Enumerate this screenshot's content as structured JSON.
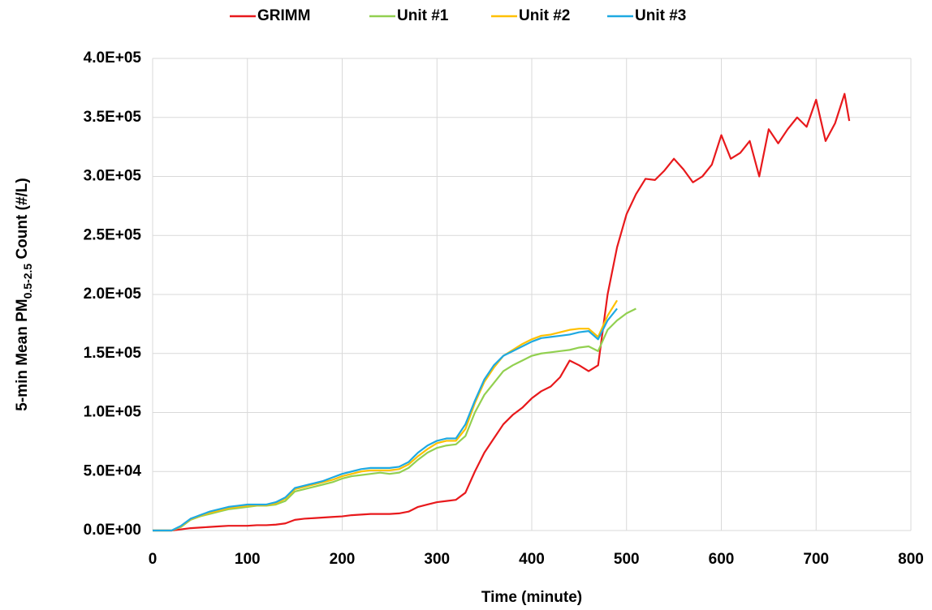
{
  "chart_data": {
    "type": "line",
    "x_label": "Time (minute)",
    "y_label": [
      "5-min Mean PM",
      "0.5-2.5",
      " Count (#/L)"
    ],
    "x": [
      0,
      10,
      20,
      30,
      40,
      50,
      60,
      70,
      80,
      90,
      100,
      110,
      120,
      130,
      140,
      150,
      160,
      170,
      180,
      190,
      200,
      210,
      220,
      230,
      240,
      250,
      260,
      270,
      280,
      290,
      300,
      310,
      320,
      330,
      340,
      350,
      360,
      370,
      380,
      390,
      400,
      410,
      420,
      430,
      440,
      450,
      460,
      470,
      480,
      490,
      500,
      510,
      520,
      530,
      540,
      550,
      560,
      570,
      580,
      590,
      600,
      610,
      620,
      630,
      640,
      650,
      660,
      670,
      680,
      690,
      700,
      710,
      720,
      730,
      735
    ],
    "series": [
      {
        "name": "GRIMM",
        "color": "#e8191c",
        "values": [
          0,
          0,
          0,
          1000,
          2000,
          2500,
          3000,
          3500,
          4000,
          4000,
          4000,
          4500,
          4500,
          5000,
          6000,
          9000,
          10000,
          10500,
          11000,
          11500,
          12000,
          13000,
          13500,
          14000,
          14000,
          14000,
          14500,
          16000,
          20000,
          22000,
          24000,
          25000,
          26000,
          32000,
          50000,
          66000,
          78000,
          90000,
          98000,
          104000,
          112000,
          118000,
          122000,
          130000,
          144000,
          140000,
          135000,
          140000,
          200000,
          240000,
          268000,
          285000,
          298000,
          297000,
          305000,
          315000,
          306000,
          295000,
          300000,
          310000,
          335000,
          315000,
          320000,
          330000,
          300000,
          340000,
          328000,
          340000,
          350000,
          342000,
          365000,
          330000,
          345000,
          370000,
          347000
        ]
      },
      {
        "name": "Unit #1",
        "color": "#92d050",
        "values": [
          0,
          0,
          0,
          3000,
          9000,
          12000,
          14000,
          16000,
          18000,
          19000,
          20000,
          21000,
          21000,
          22000,
          25000,
          33000,
          35000,
          37000,
          39000,
          41000,
          44000,
          46000,
          47000,
          48000,
          49000,
          48000,
          49000,
          53000,
          60000,
          66000,
          70000,
          72000,
          73000,
          80000,
          100000,
          115000,
          125000,
          135000,
          140000,
          144000,
          148000,
          150000,
          151000,
          152000,
          153000,
          155000,
          156000,
          152000,
          170000,
          178000,
          184000,
          188000,
          null,
          null,
          null,
          null,
          null,
          null,
          null,
          null,
          null,
          null,
          null,
          null,
          null,
          null,
          null,
          null,
          null,
          null,
          null,
          null,
          null,
          null,
          null
        ]
      },
      {
        "name": "Unit #2",
        "color": "#ffc000",
        "values": [
          0,
          0,
          0,
          3500,
          9500,
          12500,
          15000,
          17000,
          19000,
          20000,
          21000,
          21500,
          21500,
          23000,
          27000,
          35000,
          37000,
          39000,
          41000,
          43000,
          46000,
          48000,
          50000,
          51000,
          51000,
          51000,
          52000,
          56000,
          63000,
          69000,
          74000,
          76000,
          76000,
          86000,
          108000,
          126000,
          138000,
          148000,
          153000,
          158000,
          162000,
          165000,
          166000,
          168000,
          170000,
          171000,
          171000,
          164000,
          182000,
          195000,
          null,
          null,
          null,
          null,
          null,
          null,
          null,
          null,
          null,
          null,
          null,
          null,
          null,
          null,
          null,
          null,
          null,
          null,
          null,
          null,
          null,
          null,
          null,
          null,
          null
        ]
      },
      {
        "name": "Unit #3",
        "color": "#1fa9e1",
        "values": [
          0,
          0,
          0,
          4000,
          10000,
          13000,
          16000,
          18000,
          20000,
          21000,
          22000,
          22000,
          22000,
          24000,
          28000,
          36000,
          38000,
          40000,
          42000,
          45000,
          48000,
          50000,
          52000,
          53000,
          53000,
          53000,
          54000,
          58000,
          66000,
          72000,
          76000,
          78000,
          78000,
          90000,
          110000,
          128000,
          140000,
          148000,
          152000,
          156000,
          160000,
          163000,
          164000,
          165000,
          166000,
          168000,
          169000,
          162000,
          178000,
          188000,
          null,
          null,
          null,
          null,
          null,
          null,
          null,
          null,
          null,
          null,
          null,
          null,
          null,
          null,
          null,
          null,
          null,
          null,
          null,
          null,
          null,
          null,
          null,
          null,
          null
        ]
      }
    ],
    "xlim": [
      0,
      800
    ],
    "xticks": [
      0,
      100,
      200,
      300,
      400,
      500,
      600,
      700,
      800
    ],
    "ylim": [
      0,
      400000
    ],
    "yticks": [
      {
        "value": 0,
        "label": "0.0E+00"
      },
      {
        "value": 50000,
        "label": "5.0E+04"
      },
      {
        "value": 100000,
        "label": "1.0E+05"
      },
      {
        "value": 150000,
        "label": "1.5E+05"
      },
      {
        "value": 200000,
        "label": "2.0E+05"
      },
      {
        "value": 250000,
        "label": "2.5E+05"
      },
      {
        "value": 300000,
        "label": "3.0E+05"
      },
      {
        "value": 350000,
        "label": "3.5E+05"
      },
      {
        "value": 400000,
        "label": "4.0E+05"
      }
    ],
    "grid": true,
    "legend": "top"
  }
}
